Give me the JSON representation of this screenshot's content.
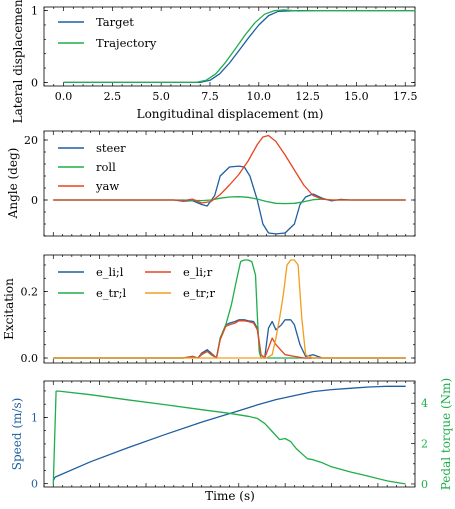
{
  "chart_data": [
    {
      "type": "line",
      "xlabel": "Longitudinal displacement (m)",
      "ylabel": "Lateral displacement",
      "xlim": [
        -1.0,
        18.0
      ],
      "ylim": [
        -0.05,
        1.05
      ],
      "xticks": [
        "0.0",
        "2.5",
        "5.0",
        "7.5",
        "10.0",
        "12.5",
        "15.0",
        "17.5"
      ],
      "yticks": [
        "0",
        "1"
      ],
      "legend": "top-left",
      "series": [
        {
          "name": "Target",
          "color": "#1f5fa0",
          "x": [
            0,
            7.0,
            7.5,
            8.0,
            8.5,
            9.0,
            9.5,
            10.0,
            10.5,
            11.0,
            12.0,
            18.0
          ],
          "y": [
            0,
            0,
            0.03,
            0.12,
            0.27,
            0.45,
            0.63,
            0.8,
            0.93,
            0.99,
            1.0,
            1.0
          ]
        },
        {
          "name": "Trajectory",
          "color": "#1fae4a",
          "x": [
            0,
            6.8,
            7.3,
            7.8,
            8.3,
            8.8,
            9.3,
            9.8,
            10.3,
            10.8,
            11.3,
            12.0,
            13.0,
            18.0
          ],
          "y": [
            0,
            0,
            0.03,
            0.12,
            0.28,
            0.47,
            0.66,
            0.83,
            0.95,
            1.0,
            1.01,
            0.995,
            1.0,
            1.0
          ]
        }
      ]
    },
    {
      "type": "line",
      "xlabel": "",
      "ylabel": "Angle (deg)",
      "xlim": [
        -0.5,
        19.5
      ],
      "ylim": [
        -12,
        23
      ],
      "yticks": [
        "0",
        "20"
      ],
      "legend": "top-left",
      "series": [
        {
          "name": "steer",
          "color": "#1f5fa0",
          "x": [
            0,
            6.5,
            7.0,
            7.5,
            8.0,
            8.3,
            8.7,
            9.0,
            9.5,
            10.0,
            10.3,
            10.6,
            11.0,
            11.3,
            11.6,
            12.0,
            12.5,
            13.0,
            13.3,
            13.6,
            14.0,
            14.5,
            15.0,
            15.5,
            16.0,
            19.0
          ],
          "y": [
            0,
            0,
            -0.4,
            -0.2,
            -1.5,
            -2.0,
            1.5,
            8.0,
            11.0,
            11.3,
            11.0,
            8.0,
            0,
            -8.0,
            -11.0,
            -11.3,
            -11.0,
            -8.0,
            -1.5,
            1.0,
            2.0,
            0.6,
            -0.3,
            0.2,
            0,
            0
          ]
        },
        {
          "name": "roll",
          "color": "#1fae4a",
          "x": [
            0,
            7.0,
            8.0,
            8.5,
            9.0,
            9.5,
            10.0,
            10.5,
            11.0,
            11.5,
            12.0,
            12.5,
            13.0,
            13.5,
            14.0,
            14.5,
            15.0,
            19.0
          ],
          "y": [
            0,
            0,
            -0.2,
            0.0,
            0.6,
            1.0,
            1.1,
            0.9,
            0.3,
            -0.5,
            -1.1,
            -1.2,
            -1.1,
            -0.6,
            0.1,
            0.3,
            0.0,
            0
          ]
        },
        {
          "name": "yaw",
          "color": "#e8451e",
          "x": [
            0,
            6.5,
            7.0,
            7.5,
            8.0,
            8.5,
            9.0,
            9.5,
            10.0,
            10.5,
            11.0,
            11.3,
            11.6,
            12.0,
            12.5,
            13.0,
            13.5,
            14.0,
            14.5,
            15.0,
            19.0
          ],
          "y": [
            0,
            0,
            -0.2,
            0.3,
            -1.0,
            -0.5,
            1.8,
            5.0,
            8.5,
            13.0,
            18.5,
            21.0,
            21.5,
            19.5,
            15.0,
            10.0,
            5.0,
            1.5,
            0.3,
            0,
            0
          ]
        }
      ]
    },
    {
      "type": "line",
      "xlabel": "",
      "ylabel": "Excitation",
      "xlim": [
        -0.5,
        19.5
      ],
      "ylim": [
        -0.015,
        0.31
      ],
      "yticks": [
        "0.0",
        "0.2"
      ],
      "legend": "top-left",
      "series": [
        {
          "name": "e_li;l",
          "color": "#1f5fa0",
          "x": [
            0,
            7.0,
            7.5,
            7.8,
            8.0,
            8.3,
            8.5,
            8.8,
            9.0,
            9.3,
            9.5,
            9.8,
            10.0,
            10.3,
            10.5,
            10.8,
            11.0,
            11.2,
            11.4,
            11.6,
            11.8,
            12.0,
            12.3,
            12.5,
            12.8,
            13.0,
            13.3,
            13.6,
            14.0,
            14.5,
            15.0,
            19.0
          ],
          "y": [
            0,
            0,
            0.005,
            0,
            0.015,
            0.025,
            0.015,
            0,
            0.06,
            0.1,
            0.105,
            0.11,
            0.115,
            0.115,
            0.112,
            0.11,
            0.09,
            0.01,
            0.0,
            0.09,
            0.11,
            0.085,
            0.1,
            0.115,
            0.115,
            0.1,
            0.04,
            0.005,
            0.01,
            0.0,
            0.0,
            0
          ]
        },
        {
          "name": "e_tr;l",
          "color": "#1fae4a",
          "x": [
            0,
            7.0,
            7.5,
            7.8,
            8.0,
            8.3,
            8.5,
            8.8,
            9.0,
            9.3,
            9.6,
            9.9,
            10.1,
            10.3,
            10.5,
            10.7,
            10.9,
            11.0,
            11.1,
            11.2,
            11.5,
            19.0
          ],
          "y": [
            0,
            0,
            0.005,
            0,
            0.01,
            0.02,
            0.01,
            0,
            0.06,
            0.1,
            0.16,
            0.24,
            0.29,
            0.295,
            0.295,
            0.29,
            0.25,
            0.13,
            0.02,
            0,
            0,
            0
          ]
        },
        {
          "name": "e_li;r",
          "color": "#e8451e",
          "x": [
            0,
            7.0,
            7.5,
            7.8,
            8.0,
            8.3,
            8.5,
            8.8,
            9.0,
            9.3,
            9.5,
            9.8,
            10.0,
            10.3,
            10.5,
            10.8,
            11.0,
            11.2,
            11.4,
            11.6,
            11.8,
            12.0,
            12.5,
            13.0,
            13.5,
            19.0
          ],
          "y": [
            0,
            0,
            0.004,
            0,
            0.012,
            0.02,
            0.012,
            0,
            0.055,
            0.095,
            0.1,
            0.105,
            0.112,
            0.112,
            0.11,
            0.105,
            0.085,
            0.01,
            0,
            0.03,
            0.06,
            0.04,
            0.01,
            0.005,
            0,
            0
          ]
        },
        {
          "name": "e_tr;r",
          "color": "#f29d1d",
          "x": [
            0,
            11.5,
            11.8,
            12.0,
            12.2,
            12.4,
            12.6,
            12.8,
            13.0,
            13.2,
            13.4,
            13.6,
            14.0,
            19.0
          ],
          "y": [
            0,
            0,
            0.01,
            0.06,
            0.12,
            0.19,
            0.28,
            0.295,
            0.295,
            0.28,
            0.12,
            0.01,
            0,
            0
          ]
        }
      ]
    },
    {
      "type": "line",
      "xlabel": "Time (s)",
      "ylabel": "Speed (m/s)",
      "y2label": "Pedal torque (Nm)",
      "xlim": [
        -0.5,
        19.5
      ],
      "ylim": [
        -0.05,
        1.55
      ],
      "y2lim": [
        -0.15,
        5.1
      ],
      "yticks": [
        "0",
        "1"
      ],
      "y2ticks": [
        "0",
        "2",
        "4"
      ],
      "series": [
        {
          "name": "Speed",
          "axis": "left",
          "color": "#1f5fa0",
          "x": [
            0,
            0.1,
            2,
            4,
            6,
            8,
            10,
            11,
            12,
            13,
            14,
            15,
            16,
            17,
            18,
            19
          ],
          "y": [
            0.05,
            0.1,
            0.33,
            0.54,
            0.74,
            0.93,
            1.1,
            1.19,
            1.27,
            1.33,
            1.39,
            1.42,
            1.44,
            1.46,
            1.47,
            1.47
          ]
        },
        {
          "name": "Pedal torque",
          "axis": "right",
          "color": "#1fae4a",
          "x": [
            0,
            0.15,
            0.3,
            2,
            4,
            6,
            8,
            9.5,
            10.5,
            11.0,
            11.4,
            11.8,
            12.2,
            12.5,
            12.8,
            13.1,
            13.4,
            13.7,
            14.0,
            14.5,
            15,
            16,
            17,
            18,
            19
          ],
          "y": [
            0,
            4.6,
            4.6,
            4.42,
            4.17,
            3.93,
            3.68,
            3.5,
            3.35,
            3.25,
            3.0,
            2.6,
            2.2,
            2.25,
            2.1,
            1.75,
            1.5,
            1.25,
            1.2,
            1.05,
            0.85,
            0.6,
            0.38,
            0.15,
            0.0
          ]
        }
      ]
    }
  ]
}
